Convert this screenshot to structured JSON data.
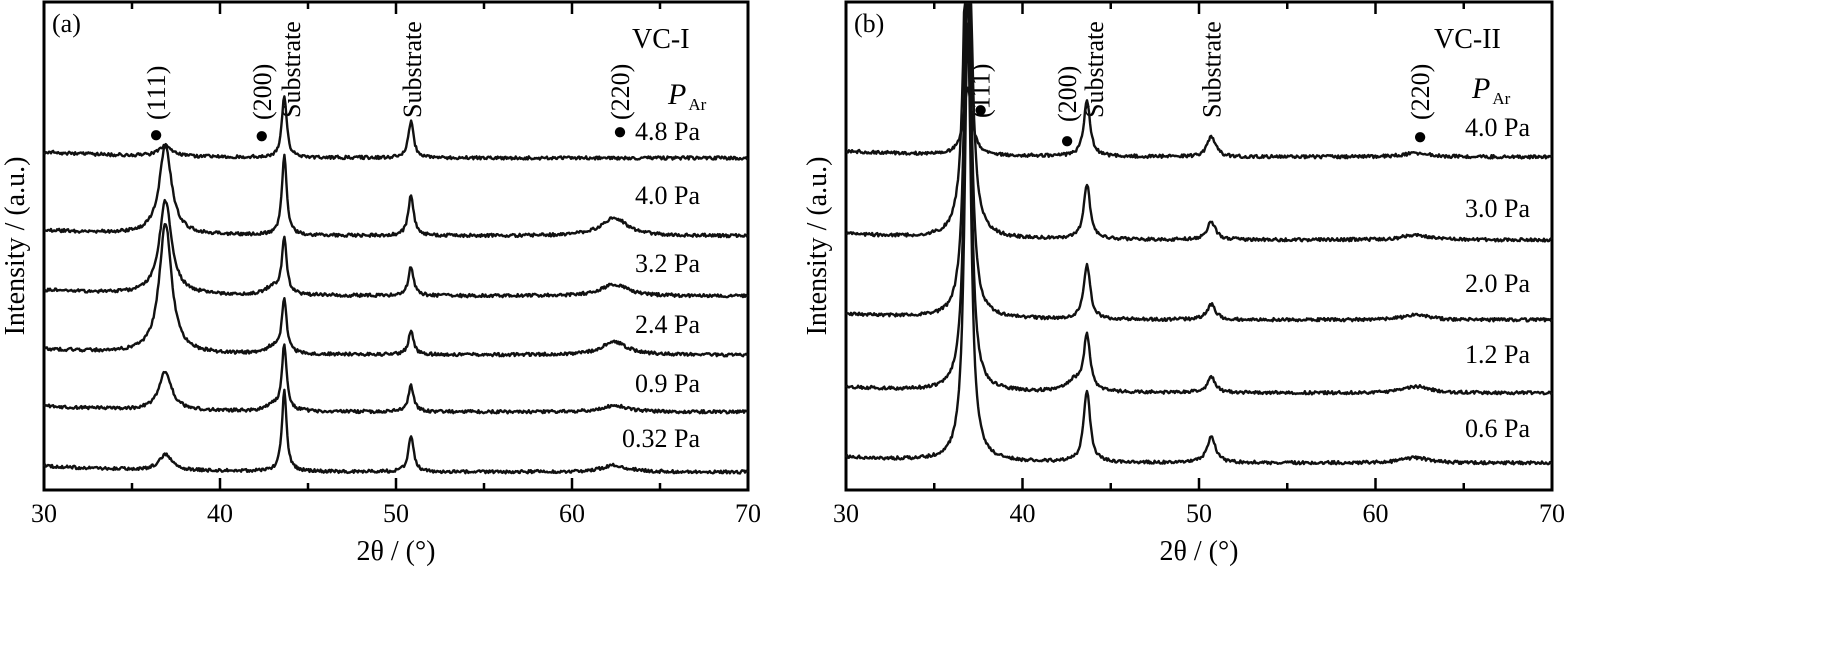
{
  "chart_data": [
    {
      "panel": "(a)",
      "type": "line",
      "sample_label": "VC-I",
      "xlabel": "2θ / (°)",
      "ylabel": "Intensity / (a.u.)",
      "xlim": [
        30,
        70
      ],
      "x_major_ticks": [
        30,
        40,
        50,
        60,
        70
      ],
      "legend_title": "P_Ar",
      "legend_title_main": "P",
      "legend_title_sub": "Ar",
      "marker_symbol": "●",
      "peak_markers": [
        {
          "label": "(111)",
          "x": 36.6,
          "dot": true
        },
        {
          "label": "(200)",
          "x": 42.6,
          "dot": true
        },
        {
          "label": "Substrate",
          "x": 43.7,
          "dot": false
        },
        {
          "label": "Substrate",
          "x": 50.9,
          "dot": false
        },
        {
          "label": "(220)",
          "x": 62.5,
          "dot": true
        }
      ],
      "series": [
        {
          "name": "4.8 Pa",
          "peaks": {
            "p111": 0.08,
            "p200": 0.0,
            "sub1": 0.48,
            "sub2": 0.28,
            "p220": 0.0
          }
        },
        {
          "name": "4.0 Pa",
          "peaks": {
            "p111": 0.68,
            "p200": 0.0,
            "sub1": 0.62,
            "sub2": 0.32,
            "p220": 0.14
          }
        },
        {
          "name": "3.2 Pa",
          "peaks": {
            "p111": 0.72,
            "p200": 0.06,
            "sub1": 0.42,
            "sub2": 0.22,
            "p220": 0.09
          }
        },
        {
          "name": "2.4 Pa",
          "peaks": {
            "p111": 1.0,
            "p200": 0.05,
            "sub1": 0.42,
            "sub2": 0.18,
            "p220": 0.1
          }
        },
        {
          "name": "0.9 Pa",
          "peaks": {
            "p111": 0.3,
            "p200": 0.04,
            "sub1": 0.5,
            "sub2": 0.2,
            "p220": 0.05
          }
        },
        {
          "name": "0.32 Pa",
          "peaks": {
            "p111": 0.12,
            "p200": 0.0,
            "sub1": 0.62,
            "sub2": 0.28,
            "p220": 0.05
          }
        }
      ]
    },
    {
      "panel": "(b)",
      "type": "line",
      "sample_label": "VC-II",
      "xlabel": "2θ / (°)",
      "ylabel": "Intensity / (a.u.)",
      "xlim": [
        30,
        70
      ],
      "x_major_ticks": [
        30,
        40,
        50,
        60,
        70
      ],
      "legend_title": "P_Ar",
      "legend_title_main": "P",
      "legend_title_sub": "Ar",
      "marker_symbol": "●",
      "peak_markers": [
        {
          "label": "(111)",
          "x": 37.4,
          "dot": true
        },
        {
          "label": "(200)",
          "x": 42.3,
          "dot": true
        },
        {
          "label": "Substrate",
          "x": 43.7,
          "dot": false
        },
        {
          "label": "Substrate",
          "x": 50.7,
          "dot": false
        },
        {
          "label": "(220)",
          "x": 62.3,
          "dot": true
        }
      ],
      "series": [
        {
          "name": "4.0 Pa",
          "peaks": {
            "p111": 0.15,
            "p200": 0.0,
            "sub1": 0.42,
            "sub2": 0.16,
            "p220": 0.03
          }
        },
        {
          "name": "3.0 Pa",
          "peaks": {
            "p111": 1.0,
            "p200": 0.0,
            "sub1": 0.42,
            "sub2": 0.14,
            "p220": 0.04
          }
        },
        {
          "name": "2.0 Pa",
          "peaks": {
            "p111": 0.92,
            "p200": 0.0,
            "sub1": 0.42,
            "sub2": 0.12,
            "p220": 0.04
          }
        },
        {
          "name": "1.2 Pa",
          "peaks": {
            "p111": 0.95,
            "p200": 0.08,
            "sub1": 0.42,
            "sub2": 0.12,
            "p220": 0.05
          }
        },
        {
          "name": "0.6 Pa",
          "peaks": {
            "p111": 1.0,
            "p200": 0.0,
            "sub1": 0.55,
            "sub2": 0.2,
            "p220": 0.04
          }
        }
      ]
    }
  ]
}
